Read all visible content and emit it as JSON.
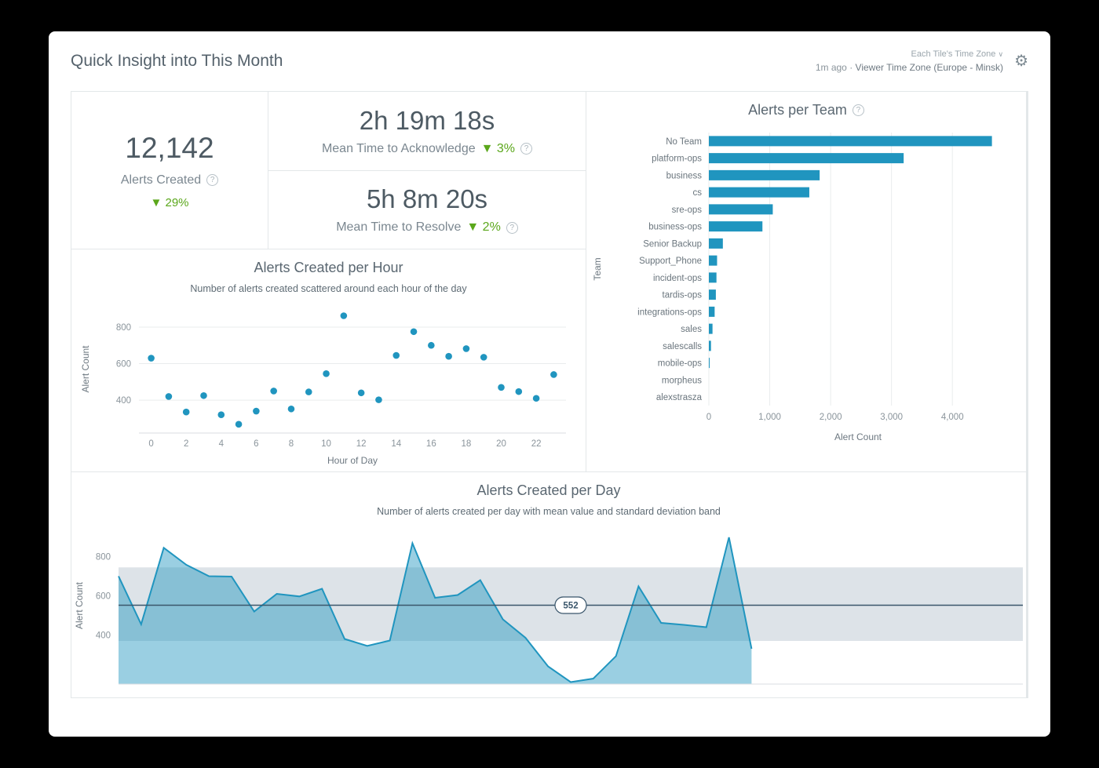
{
  "header": {
    "title": "Quick Insight into This Month",
    "updated": "1m ago",
    "separator": "·",
    "timezone_current": "Viewer Time Zone (Europe - Minsk)",
    "timezone_selector": "Each Tile's Time Zone"
  },
  "icons": {
    "help": "?",
    "settings": "⚙",
    "chevron_down": "∨"
  },
  "colors": {
    "accent": "#2095bf",
    "positive_green": "#5ba71b",
    "band": "#dde3e8",
    "mean_line": "#3a566b",
    "gridline": "#e9eced",
    "axis_line": "#d9dee1",
    "tick_text": "#8a949b",
    "label_text": "#6d7881"
  },
  "metrics": {
    "alerts_created": {
      "value": "12,142",
      "label": "Alerts Created",
      "delta": "▼ 29%"
    },
    "mtta": {
      "value": "2h 19m 18s",
      "label": "Mean Time to Acknowledge",
      "delta": "▼ 3%"
    },
    "mttr": {
      "value": "5h 8m 20s",
      "label": "Mean Time to Resolve",
      "delta": "▼ 2%"
    }
  },
  "chart_data": [
    {
      "id": "alerts_created_per_hour",
      "type": "scatter",
      "title": "Alerts Created per Hour",
      "subtitle": "Number of alerts created scattered around each hour of the day",
      "xlabel": "Hour of Day",
      "ylabel": "Alert Count",
      "x": [
        0,
        1,
        2,
        3,
        4,
        5,
        6,
        7,
        8,
        9,
        10,
        11,
        12,
        13,
        14,
        15,
        16,
        17,
        18,
        19,
        20,
        21,
        22,
        23
      ],
      "y": [
        630,
        420,
        335,
        425,
        320,
        268,
        340,
        450,
        352,
        445,
        545,
        862,
        440,
        402,
        645,
        775,
        700,
        640,
        682,
        635,
        470,
        447,
        410,
        540
      ],
      "xticks": [
        0,
        2,
        4,
        6,
        8,
        10,
        12,
        14,
        16,
        18,
        20,
        22
      ],
      "yticks": [
        400,
        600,
        800
      ],
      "xlim": [
        -0.7,
        23.7
      ],
      "ylim": [
        220,
        920
      ],
      "grid": true,
      "legend": false
    },
    {
      "id": "alerts_per_team",
      "type": "bar",
      "orientation": "horizontal",
      "title": "Alerts per Team",
      "xlabel": "Alert Count",
      "ylabel": "Team",
      "categories": [
        "No Team",
        "platform-ops",
        "business",
        "cs",
        "sre-ops",
        "business-ops",
        "Senior Backup",
        "Support_Phone",
        "incident-ops",
        "tardis-ops",
        "integrations-ops",
        "sales",
        "salescalls",
        "mobile-ops",
        "morpheus",
        "alexstrasza"
      ],
      "values": [
        4650,
        3200,
        1820,
        1650,
        1050,
        880,
        230,
        135,
        125,
        115,
        95,
        60,
        35,
        12,
        5,
        3
      ],
      "xticks": [
        0,
        1000,
        2000,
        3000,
        4000
      ],
      "xtick_labels": [
        "0",
        "1,000",
        "2,000",
        "3,000",
        "4,000"
      ],
      "xlim": [
        0,
        4900
      ],
      "grid": true,
      "legend": false
    },
    {
      "id": "alerts_created_per_day",
      "type": "area",
      "title": "Alerts Created per Day",
      "subtitle": "Number of alerts created per day with mean value and standard deviation band",
      "ylabel": "Alert Count",
      "values": [
        700,
        455,
        845,
        758,
        700,
        698,
        520,
        610,
        597,
        636,
        380,
        345,
        372,
        868,
        590,
        604,
        680,
        480,
        386,
        240,
        160,
        178,
        292,
        648,
        462,
        452,
        440,
        898,
        330
      ],
      "mean": 552,
      "band": [
        370,
        745
      ],
      "yticks": [
        400,
        600,
        800
      ],
      "ylim": [
        150,
        950
      ],
      "data_extent": 0.7,
      "mean_label_pos": 0.5,
      "grid": false,
      "legend": false
    }
  ]
}
